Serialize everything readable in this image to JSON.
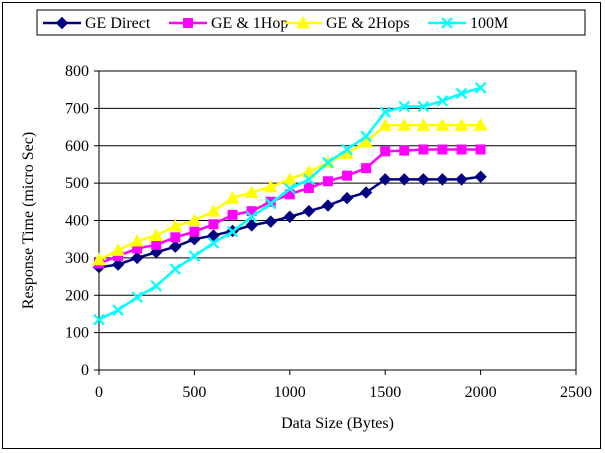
{
  "chart_data": {
    "type": "line",
    "xlabel": "Data Size (Bytes)",
    "ylabel": "Response Time (micro Sec)",
    "xlim": [
      0,
      2500
    ],
    "ylim": [
      0,
      800
    ],
    "x_ticks": [
      0,
      500,
      1000,
      1500,
      2000,
      2500
    ],
    "y_ticks": [
      0,
      100,
      200,
      300,
      400,
      500,
      600,
      700,
      800
    ],
    "grid": "horizontal",
    "legend_position": "top",
    "x": [
      0,
      100,
      200,
      300,
      400,
      500,
      600,
      700,
      800,
      900,
      1000,
      1100,
      1200,
      1300,
      1400,
      1500,
      1600,
      1700,
      1800,
      1900,
      2000
    ],
    "series": [
      {
        "name": "GE Direct",
        "color": "#000080",
        "marker": "diamond",
        "values": [
          275,
          282,
          300,
          315,
          330,
          350,
          360,
          372,
          387,
          397,
          410,
          425,
          440,
          460,
          475,
          510,
          510,
          510,
          510,
          510,
          517
        ]
      },
      {
        "name": "GE & 1Hop",
        "color": "#FF00FF",
        "marker": "square",
        "values": [
          285,
          305,
          325,
          335,
          355,
          370,
          390,
          415,
          425,
          450,
          470,
          487,
          505,
          520,
          540,
          585,
          587,
          590,
          590,
          590,
          590
        ]
      },
      {
        "name": "GE & 2Hops",
        "color": "#FFFF00",
        "marker": "triangle",
        "values": [
          295,
          320,
          345,
          360,
          385,
          400,
          425,
          460,
          475,
          490,
          510,
          530,
          555,
          580,
          610,
          655,
          655,
          655,
          655,
          655,
          655
        ]
      },
      {
        "name": "100M",
        "color": "#00FFFF",
        "marker": "x",
        "values": [
          135,
          160,
          195,
          225,
          270,
          305,
          340,
          370,
          410,
          445,
          485,
          510,
          555,
          590,
          625,
          690,
          705,
          705,
          720,
          740,
          755
        ]
      }
    ]
  }
}
